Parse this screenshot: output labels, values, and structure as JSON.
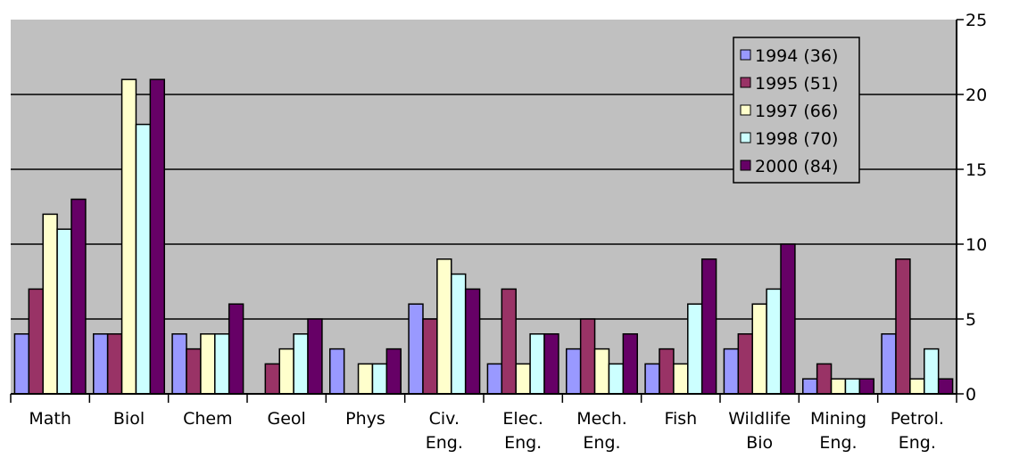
{
  "chart_data": {
    "type": "bar",
    "categories": [
      "Math",
      "Biol",
      "Chem",
      "Geol",
      "Phys",
      "Civ. Eng.",
      "Elec. Eng.",
      "Mech. Eng.",
      "Fish",
      "Wildlife Bio",
      "Mining Eng.",
      "Petrol. Eng."
    ],
    "series": [
      {
        "name": "1994 (36)",
        "color": "#9999ff",
        "values": [
          4,
          4,
          4,
          0,
          3,
          6,
          2,
          3,
          2,
          3,
          1,
          4
        ]
      },
      {
        "name": "1995 (51)",
        "color": "#993366",
        "values": [
          7,
          4,
          3,
          2,
          0,
          5,
          7,
          5,
          3,
          4,
          2,
          9
        ]
      },
      {
        "name": "1997 (66)",
        "color": "#ffffcc",
        "values": [
          12,
          21,
          4,
          3,
          2,
          9,
          2,
          3,
          2,
          6,
          1,
          1
        ]
      },
      {
        "name": "1998 (70)",
        "color": "#ccffff",
        "values": [
          11,
          18,
          4,
          4,
          2,
          8,
          4,
          2,
          6,
          7,
          1,
          3
        ]
      },
      {
        "name": "2000 (84)",
        "color": "#660066",
        "values": [
          13,
          21,
          6,
          5,
          3,
          7,
          4,
          4,
          9,
          10,
          1,
          1
        ]
      }
    ],
    "ylim": [
      0,
      25
    ],
    "yticks": [
      0,
      5,
      10,
      15,
      20,
      25
    ],
    "grid": true,
    "legend": "top-right"
  }
}
